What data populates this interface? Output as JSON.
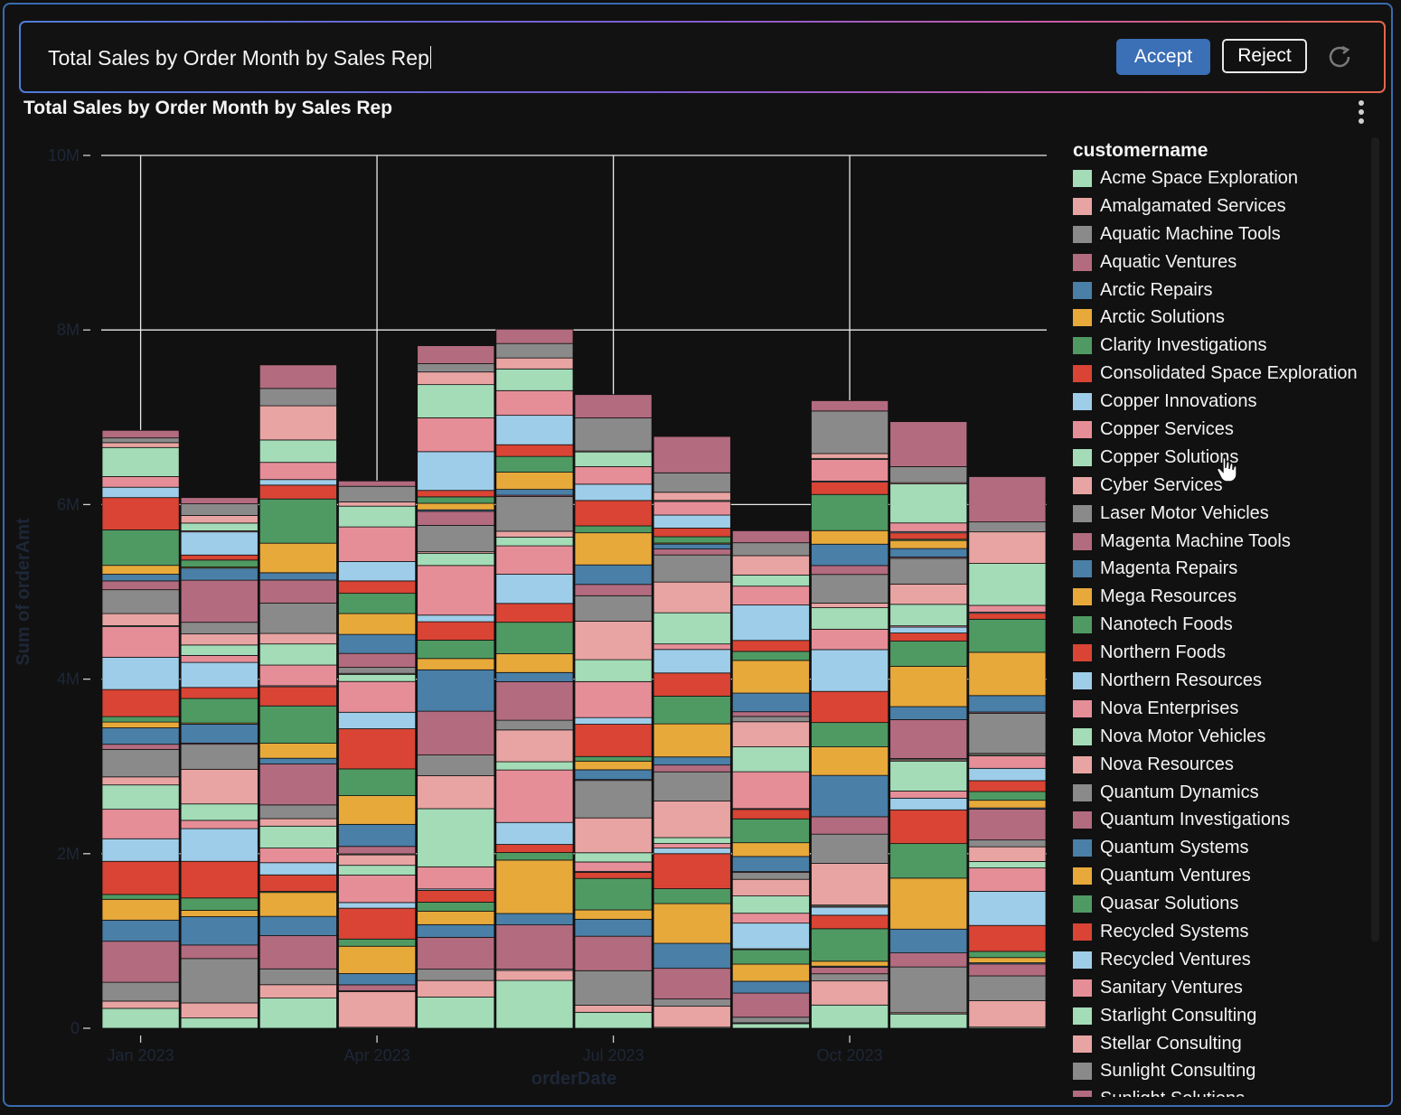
{
  "prompt": {
    "text": "Total Sales by Order Month by Sales Rep"
  },
  "actions": {
    "accept_label": "Accept",
    "reject_label": "Reject"
  },
  "chart_data": {
    "type": "bar",
    "stacked": true,
    "title": "Total Sales by Order Month by Sales Rep",
    "xlabel": "orderDate",
    "ylabel": "Sum of orderAmt",
    "ylim": [
      0,
      10000000
    ],
    "yticks": [
      0,
      2000000,
      4000000,
      6000000,
      8000000,
      10000000
    ],
    "ytick_labels": [
      "0",
      "2M",
      "4M",
      "6M",
      "8M",
      "10M"
    ],
    "xticks": [
      {
        "label": "Jan 2023",
        "month_index": 0
      },
      {
        "label": "Apr 2023",
        "month_index": 3
      },
      {
        "label": "Jul 2023",
        "month_index": 6
      },
      {
        "label": "Oct 2023",
        "month_index": 9
      }
    ],
    "categories": [
      "2023-01",
      "2023-02",
      "2023-03",
      "2023-04",
      "2023-05",
      "2023-06",
      "2023-07",
      "2023-08",
      "2023-09",
      "2023-10",
      "2023-11",
      "2023-12"
    ],
    "totals": [
      6850000,
      6080000,
      7600000,
      6270000,
      7820000,
      8010000,
      7260000,
      6780000,
      5700000,
      7190000,
      6950000,
      6320000
    ],
    "grid": true,
    "legend_title": "customername",
    "legend_position": "right",
    "series": [
      {
        "name": "Acme Space Exploration",
        "color": "#a3dcb7"
      },
      {
        "name": "Amalgamated Services",
        "color": "#e8a4a2"
      },
      {
        "name": "Aquatic Machine Tools",
        "color": "#8a8a8a"
      },
      {
        "name": "Aquatic Ventures",
        "color": "#b36b7f"
      },
      {
        "name": "Arctic Repairs",
        "color": "#4a7fa7"
      },
      {
        "name": "Arctic Solutions",
        "color": "#e8a93b"
      },
      {
        "name": "Clarity Investigations",
        "color": "#4f9a63"
      },
      {
        "name": "Consolidated Space Exploration",
        "color": "#d94434"
      },
      {
        "name": "Copper Innovations",
        "color": "#9ecde9"
      },
      {
        "name": "Copper Services",
        "color": "#e68e98"
      },
      {
        "name": "Copper Solutions",
        "color": "#a3dcb7"
      },
      {
        "name": "Cyber Services",
        "color": "#e8a4a2"
      },
      {
        "name": "Laser Motor Vehicles",
        "color": "#8a8a8a"
      },
      {
        "name": "Magenta Machine Tools",
        "color": "#b36b7f"
      },
      {
        "name": "Magenta Repairs",
        "color": "#4a7fa7"
      },
      {
        "name": "Mega Resources",
        "color": "#e8a93b"
      },
      {
        "name": "Nanotech Foods",
        "color": "#4f9a63"
      },
      {
        "name": "Northern Foods",
        "color": "#d94434"
      },
      {
        "name": "Northern Resources",
        "color": "#9ecde9"
      },
      {
        "name": "Nova Enterprises",
        "color": "#e68e98"
      },
      {
        "name": "Nova Motor Vehicles",
        "color": "#a3dcb7"
      },
      {
        "name": "Nova Resources",
        "color": "#e8a4a2"
      },
      {
        "name": "Quantum Dynamics",
        "color": "#8a8a8a"
      },
      {
        "name": "Quantum Investigations",
        "color": "#b36b7f"
      },
      {
        "name": "Quantum Systems",
        "color": "#4a7fa7"
      },
      {
        "name": "Quantum Ventures",
        "color": "#e8a93b"
      },
      {
        "name": "Quasar Solutions",
        "color": "#4f9a63"
      },
      {
        "name": "Recycled Systems",
        "color": "#d94434"
      },
      {
        "name": "Recycled Ventures",
        "color": "#9ecde9"
      },
      {
        "name": "Sanitary Ventures",
        "color": "#e68e98"
      },
      {
        "name": "Starlight Consulting",
        "color": "#a3dcb7"
      },
      {
        "name": "Stellar Consulting",
        "color": "#e8a4a2"
      },
      {
        "name": "Sunlight Consulting",
        "color": "#8a8a8a"
      },
      {
        "name": "Sunlight Solutions",
        "color": "#b36b7f"
      }
    ]
  }
}
